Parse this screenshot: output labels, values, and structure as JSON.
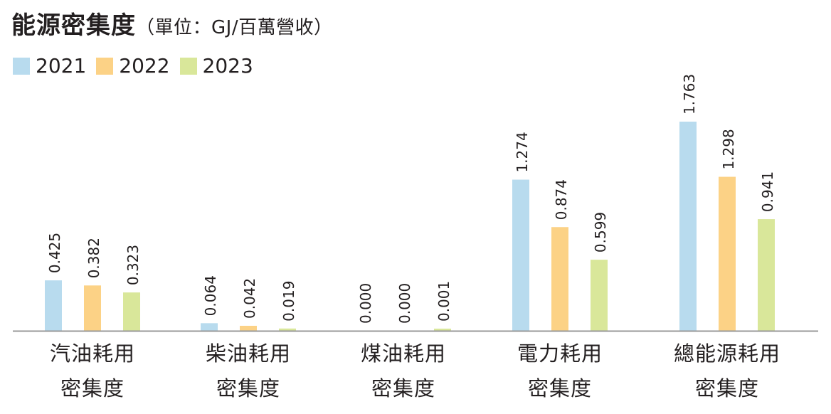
{
  "title": "能源密集度",
  "unit": "（單位：GJ/百萬營收）",
  "colors": {
    "2021": "#b8dbee",
    "2022": "#fcd286",
    "2023": "#d9e79a",
    "axis": "#999999",
    "text": "#231f20"
  },
  "chart_data": {
    "type": "bar",
    "title": "能源密集度",
    "subtitle": "（單位：GJ/百萬營收）",
    "categories": [
      [
        "汽油耗用",
        "密集度"
      ],
      [
        "柴油耗用",
        "密集度"
      ],
      [
        "煤油耗用",
        "密集度"
      ],
      [
        "電力耗用",
        "密集度"
      ],
      [
        "總能源耗用",
        "密集度"
      ]
    ],
    "series": [
      {
        "name": "2021",
        "values": [
          0.425,
          0.064,
          0.0,
          1.274,
          1.763
        ],
        "labels": [
          "0.425",
          "0.064",
          "0.000",
          "1.274",
          "1.763"
        ]
      },
      {
        "name": "2022",
        "values": [
          0.382,
          0.042,
          0.0,
          0.874,
          1.298
        ],
        "labels": [
          "0.382",
          "0.042",
          "0.000",
          "0.874",
          "1.298"
        ]
      },
      {
        "name": "2023",
        "values": [
          0.323,
          0.019,
          0.001,
          0.599,
          0.941
        ],
        "labels": [
          "0.323",
          "0.019",
          "0.001",
          "0.599",
          "0.941"
        ]
      }
    ],
    "ylim": [
      0,
      1.763
    ],
    "legend": "top-left",
    "grid": false
  }
}
